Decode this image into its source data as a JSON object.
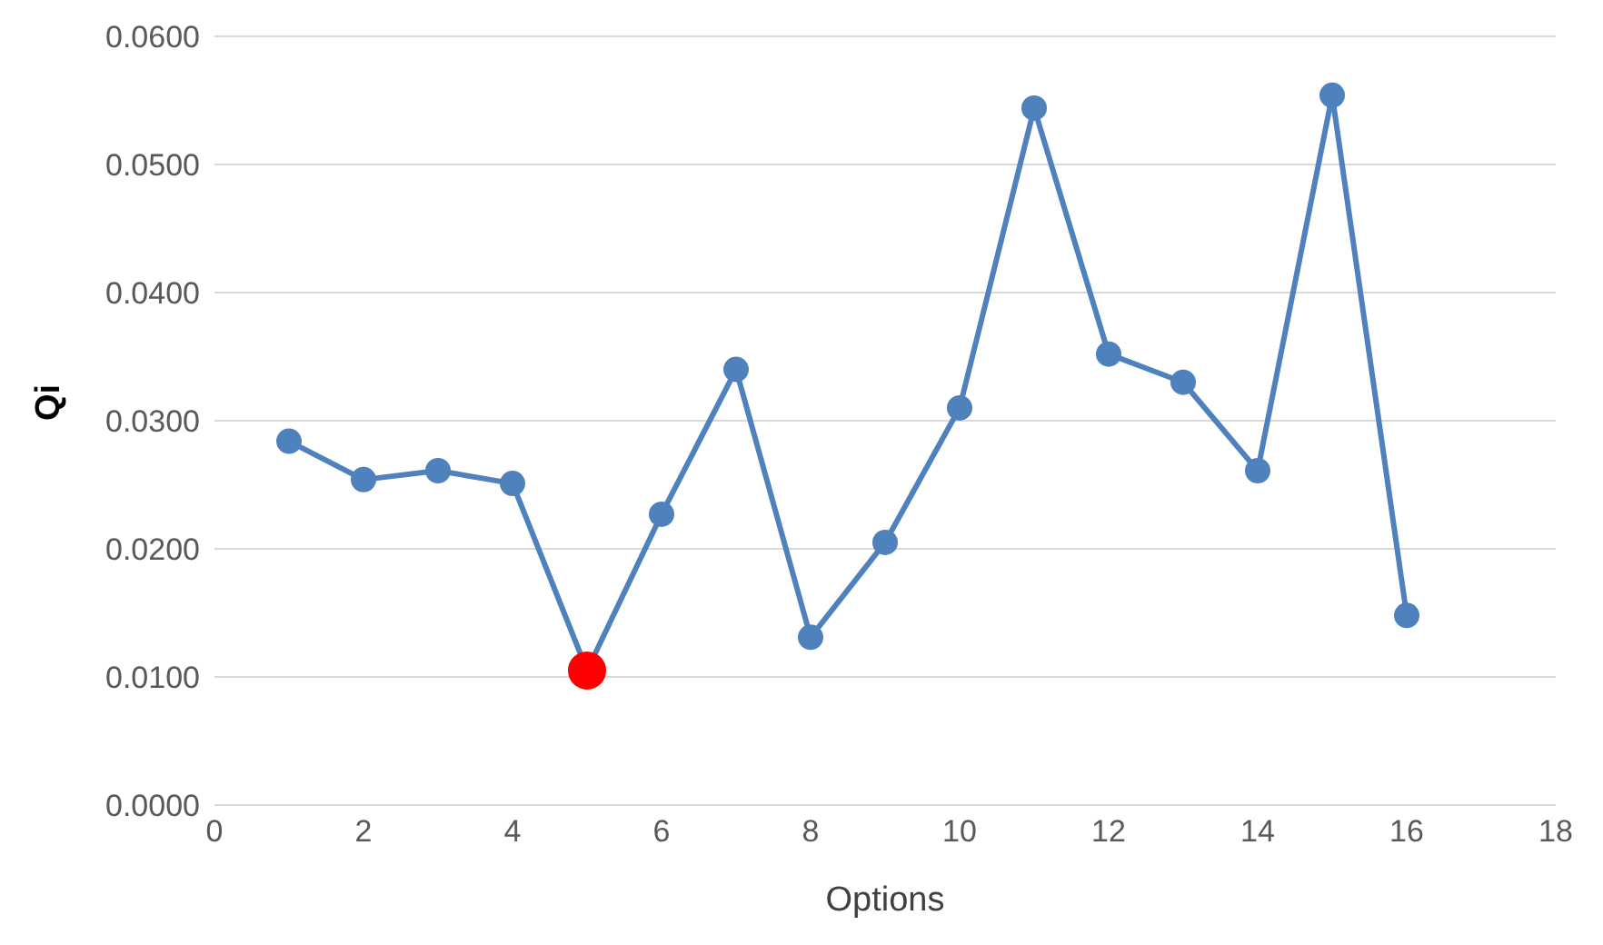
{
  "chart_data": {
    "type": "line",
    "xlabel": "Options",
    "ylabel": "Qi",
    "x": [
      1,
      2,
      3,
      4,
      5,
      6,
      7,
      8,
      9,
      10,
      11,
      12,
      13,
      14,
      15,
      16
    ],
    "series": [
      {
        "color": "#4f81bd",
        "values": [
          0.0284,
          0.0254,
          0.0261,
          0.0251,
          0.0105,
          0.0227,
          0.034,
          0.0131,
          0.0205,
          0.031,
          0.0544,
          0.0352,
          0.033,
          0.0261,
          0.0554,
          0.0148
        ],
        "colors": [
          "#4f81bd",
          "#4f81bd",
          "#4f81bd",
          "#4f81bd",
          "#ff0000",
          "#4f81bd",
          "#4f81bd",
          "#4f81bd",
          "#4f81bd",
          "#4f81bd",
          "#4f81bd",
          "#4f81bd",
          "#4f81bd",
          "#4f81bd",
          "#4f81bd",
          "#4f81bd"
        ]
      }
    ],
    "xlim": [
      0,
      18
    ],
    "xticks": [
      0,
      2,
      4,
      6,
      8,
      10,
      12,
      14,
      16,
      18
    ],
    "ylim": [
      0,
      0.06
    ],
    "yticks": [
      {
        "value": 0,
        "label": "0.0000"
      },
      {
        "value": 0.01,
        "label": "0.0100"
      },
      {
        "value": 0.02,
        "label": "0.0200"
      },
      {
        "value": 0.03,
        "label": "0.0300"
      },
      {
        "value": 0.04,
        "label": "0.0400"
      },
      {
        "value": 0.05,
        "label": "0.0500"
      },
      {
        "value": 0.06,
        "label": "0.0600"
      }
    ],
    "grid": "y",
    "marker": "circle",
    "line_style": "solid",
    "legend": false
  }
}
